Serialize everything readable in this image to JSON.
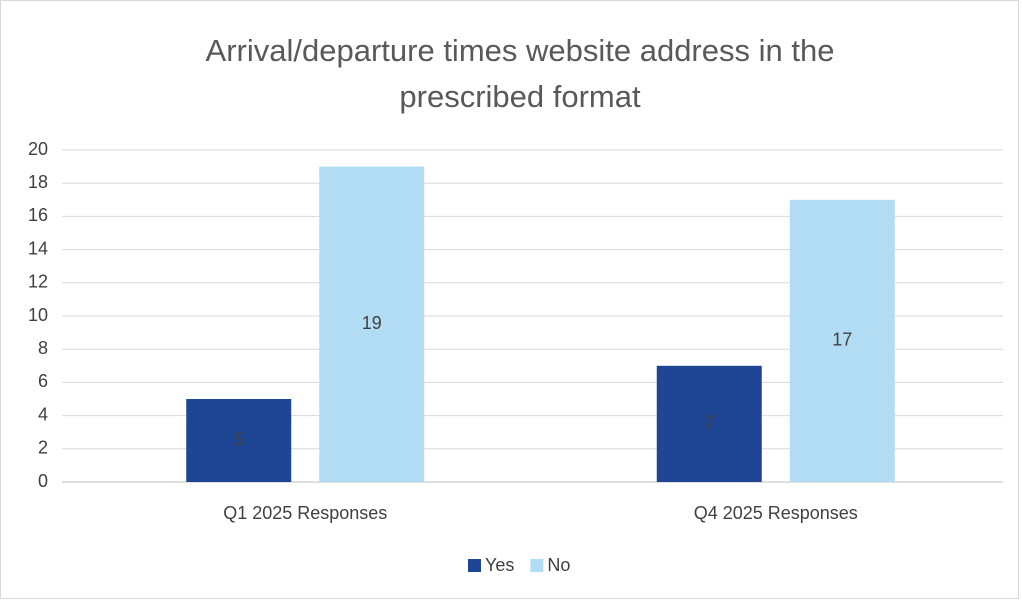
{
  "chart_data": {
    "type": "bar",
    "title": "Arrival/departure times website address in the prescribed format",
    "categories": [
      "Q1 2025 Responses",
      "Q4 2025 Responses"
    ],
    "series": [
      {
        "name": "Yes",
        "color": "#1f4695",
        "values": [
          5,
          7
        ]
      },
      {
        "name": "No",
        "color": "#b1dcf4",
        "values": [
          19,
          17
        ]
      }
    ],
    "ylim": [
      0,
      20
    ],
    "yticks": [
      0,
      2,
      4,
      6,
      8,
      10,
      12,
      14,
      16,
      18,
      20
    ],
    "grid": true,
    "legend": "bottom"
  }
}
